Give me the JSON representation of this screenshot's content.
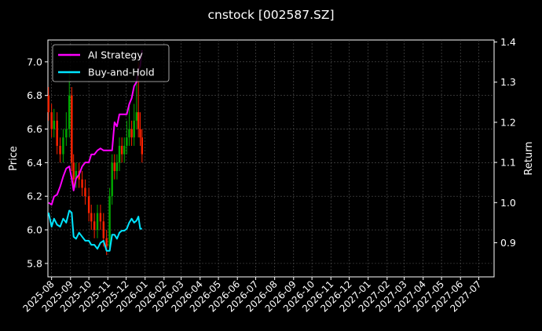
{
  "chart_data": {
    "type": "line",
    "title": "cnstock [002587.SZ]",
    "xlabel": "",
    "ylabel": "Price",
    "y2label": "Return",
    "grid": true,
    "legend": {
      "placement": "top-left",
      "entries": [
        {
          "name": "AI Strategy",
          "color": "#ff00ff"
        },
        {
          "name": "Buy-and-Hold",
          "color": "#00e5ff"
        }
      ]
    },
    "x_ticks": [
      "2025-08",
      "2025-09",
      "2025-10",
      "2025-11",
      "2025-12",
      "2026-01",
      "2026-02",
      "2026-03",
      "2026-04",
      "2026-05",
      "2026-06",
      "2026-07",
      "2026-08",
      "2026-09",
      "2026-10",
      "2026-11",
      "2026-12",
      "2027-01",
      "2027-02",
      "2027-03",
      "2027-04",
      "2027-05",
      "2027-06",
      "2027-07"
    ],
    "xlim": [
      "2025-07-26",
      "2027-07-26"
    ],
    "ylim_left": [
      5.72,
      7.13
    ],
    "ylim_right": [
      0.815,
      1.405
    ],
    "y_ticks_left": [
      "5.8",
      "6.0",
      "6.2",
      "6.4",
      "6.6",
      "6.8",
      "7.0"
    ],
    "y_ticks_right": [
      "0.9",
      "1.0",
      "1.1",
      "1.2",
      "1.3",
      "1.4"
    ],
    "series": [
      {
        "name": "AI Strategy",
        "axis": "right",
        "color": "#ff00ff",
        "x": [
          "2025-07-27",
          "2025-08-01",
          "2025-08-05",
          "2025-08-10",
          "2025-08-15",
          "2025-08-20",
          "2025-08-25",
          "2025-08-30",
          "2025-09-03",
          "2025-09-06",
          "2025-09-10",
          "2025-09-15",
          "2025-09-20",
          "2025-09-25",
          "2025-10-01",
          "2025-10-05",
          "2025-10-10",
          "2025-10-15",
          "2025-10-20",
          "2025-10-25",
          "2025-10-30",
          "2025-11-04",
          "2025-11-08",
          "2025-11-12",
          "2025-11-16",
          "2025-11-20",
          "2025-11-24",
          "2025-11-28",
          "2025-12-02",
          "2025-12-06",
          "2025-12-10",
          "2025-12-14",
          "2025-12-18",
          "2025-12-21",
          "2025-12-24",
          "2025-12-27"
        ],
        "values": [
          1.0,
          0.995,
          1.015,
          1.02,
          1.04,
          1.065,
          1.085,
          1.09,
          1.06,
          1.03,
          1.06,
          1.07,
          1.09,
          1.1,
          1.1,
          1.12,
          1.12,
          1.13,
          1.135,
          1.13,
          1.13,
          1.13,
          1.13,
          1.2,
          1.19,
          1.22,
          1.22,
          1.22,
          1.22,
          1.245,
          1.26,
          1.29,
          1.3,
          1.33,
          1.34,
          1.38
        ]
      },
      {
        "name": "Buy-and-Hold",
        "axis": "right",
        "color": "#00e5ff",
        "x": [
          "2025-07-27",
          "2025-08-01",
          "2025-08-05",
          "2025-08-10",
          "2025-08-15",
          "2025-08-20",
          "2025-08-25",
          "2025-08-30",
          "2025-09-03",
          "2025-09-06",
          "2025-09-10",
          "2025-09-15",
          "2025-09-20",
          "2025-09-25",
          "2025-10-01",
          "2025-10-05",
          "2025-10-10",
          "2025-10-15",
          "2025-10-20",
          "2025-10-25",
          "2025-10-30",
          "2025-11-04",
          "2025-11-08",
          "2025-11-12",
          "2025-11-16",
          "2025-11-20",
          "2025-11-24",
          "2025-11-28",
          "2025-12-02",
          "2025-12-06",
          "2025-12-10",
          "2025-12-14",
          "2025-12-18",
          "2025-12-21",
          "2025-12-24",
          "2025-12-27"
        ],
        "values": [
          0.975,
          0.94,
          0.96,
          0.945,
          0.94,
          0.96,
          0.95,
          0.98,
          0.975,
          0.915,
          0.91,
          0.925,
          0.915,
          0.905,
          0.905,
          0.895,
          0.895,
          0.885,
          0.9,
          0.905,
          0.88,
          0.88,
          0.92,
          0.92,
          0.91,
          0.925,
          0.93,
          0.93,
          0.935,
          0.95,
          0.96,
          0.95,
          0.955,
          0.965,
          0.935,
          0.935
        ]
      },
      {
        "name": "",
        "axis": "left",
        "type": "candlestick",
        "up_color": "#00aa00",
        "down_color": "#ff2200",
        "x": [
          "2025-07-27",
          "2025-08-01",
          "2025-08-05",
          "2025-08-10",
          "2025-08-15",
          "2025-08-20",
          "2025-08-25",
          "2025-08-30",
          "2025-09-03",
          "2025-09-06",
          "2025-09-10",
          "2025-09-15",
          "2025-09-20",
          "2025-09-25",
          "2025-10-01",
          "2025-10-05",
          "2025-10-10",
          "2025-10-15",
          "2025-10-20",
          "2025-10-25",
          "2025-10-30",
          "2025-11-04",
          "2025-11-08",
          "2025-11-12",
          "2025-11-16",
          "2025-11-20",
          "2025-11-24",
          "2025-11-28",
          "2025-12-02",
          "2025-12-06",
          "2025-12-10",
          "2025-12-14",
          "2025-12-18",
          "2025-12-21",
          "2025-12-24",
          "2025-12-27"
        ],
        "open": [
          6.8,
          6.7,
          6.6,
          6.65,
          6.5,
          6.45,
          6.55,
          6.6,
          6.8,
          6.4,
          6.3,
          6.35,
          6.3,
          6.25,
          6.2,
          6.1,
          6.05,
          6.0,
          6.1,
          6.05,
          5.95,
          5.9,
          6.2,
          6.4,
          6.35,
          6.4,
          6.5,
          6.45,
          6.5,
          6.55,
          6.6,
          6.55,
          6.65,
          6.7,
          6.6,
          6.55
        ],
        "close": [
          6.7,
          6.6,
          6.65,
          6.5,
          6.45,
          6.55,
          6.6,
          6.8,
          6.4,
          6.3,
          6.35,
          6.3,
          6.25,
          6.2,
          6.1,
          6.05,
          6.0,
          6.1,
          6.05,
          5.95,
          5.9,
          6.2,
          6.4,
          6.35,
          6.4,
          6.5,
          6.45,
          6.5,
          6.55,
          6.6,
          6.55,
          6.65,
          6.7,
          6.6,
          6.55,
          6.45
        ],
        "high": [
          6.85,
          6.75,
          6.72,
          6.7,
          6.55,
          6.6,
          6.7,
          6.95,
          6.85,
          6.45,
          6.4,
          6.4,
          6.35,
          6.3,
          6.25,
          6.15,
          6.1,
          6.15,
          6.15,
          6.1,
          6.0,
          6.25,
          6.45,
          6.45,
          6.45,
          6.55,
          6.55,
          6.55,
          6.65,
          6.75,
          6.65,
          6.75,
          6.9,
          7.0,
          6.7,
          6.6
        ],
        "low": [
          6.65,
          6.55,
          6.55,
          6.45,
          6.4,
          6.4,
          6.5,
          6.55,
          6.35,
          6.25,
          6.25,
          6.25,
          6.2,
          6.15,
          6.05,
          6.0,
          5.95,
          5.95,
          6.0,
          5.9,
          5.85,
          5.88,
          6.15,
          6.3,
          6.3,
          6.35,
          6.4,
          6.4,
          6.45,
          6.5,
          6.5,
          6.5,
          6.6,
          6.55,
          6.5,
          6.4
        ]
      }
    ]
  }
}
